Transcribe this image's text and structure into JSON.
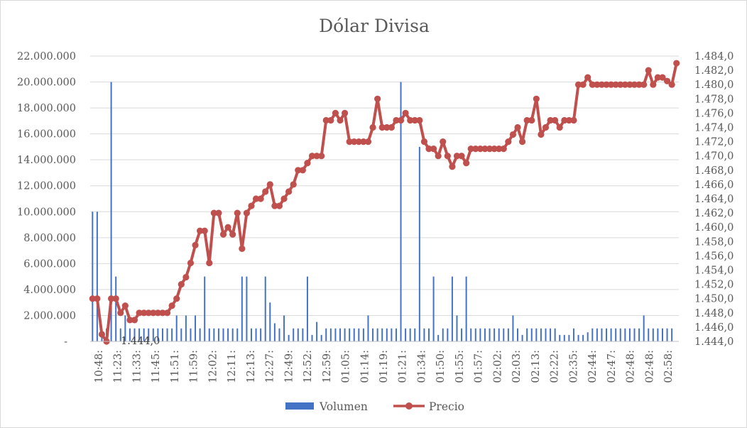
{
  "chart_data": {
    "type": "bar+line",
    "title": "Dólar Divisa",
    "xlabel": "",
    "ylabel_left": "",
    "ylabel_right": "",
    "ylim_left": [
      0,
      22000000
    ],
    "ylim_right": [
      1444.0,
      1484.0
    ],
    "grid": true,
    "legend_position": "bottom",
    "left_ticks": [
      "-",
      "2.000.000",
      "4.000.000",
      "6.000.000",
      "8.000.000",
      "10.000.000",
      "12.000.000",
      "14.000.000",
      "16.000.000",
      "18.000.000",
      "20.000.000",
      "22.000.000"
    ],
    "right_ticks": [
      "1.444,0",
      "1.446,0",
      "1.448,0",
      "1.450,0",
      "1.452,0",
      "1.454,0",
      "1.456,0",
      "1.458,0",
      "1.460,0",
      "1.462,0",
      "1.464,0",
      "1.466,0",
      "1.468,0",
      "1.470,0",
      "1.472,0",
      "1.474,0",
      "1.476,0",
      "1.478,0",
      "1.480,0",
      "1.482,0",
      "1.484,0"
    ],
    "x_tick_labels": [
      "10:48:",
      "11:23:",
      "11:33:",
      "11:45:",
      "11:51:",
      "11:59:",
      "12:02:",
      "12:11:",
      "12:13:",
      "12:27:",
      "12:49:",
      "12:52:",
      "12:59:",
      "01:05:",
      "01:14:",
      "01:19:",
      "01:21:",
      "01:34:",
      "01:50:",
      "01:55:",
      "01:57:",
      "02:02:",
      "02:03:",
      "02:13:",
      "02:22:",
      "02:35:",
      "02:44:",
      "02:47:",
      "02:48:",
      "02:48:",
      "02:58:"
    ],
    "data_labels": [
      {
        "series": "Precio",
        "point_index": 3,
        "text": "1.444,0"
      }
    ],
    "series": [
      {
        "name": "Volumen",
        "type": "bar",
        "axis": "left",
        "color": "#4472c4",
        "values": [
          10000000,
          10000000,
          1000000,
          1000000,
          20000000,
          5000000,
          1000000,
          2000000,
          1000000,
          1000000,
          1000000,
          1000000,
          1000000,
          1000000,
          1000000,
          1000000,
          1000000,
          1000000,
          2000000,
          1000000,
          2000000,
          1000000,
          2000000,
          1000000,
          5000000,
          1000000,
          1000000,
          1000000,
          1000000,
          1000000,
          1000000,
          1000000,
          5000000,
          5000000,
          1000000,
          1000000,
          1000000,
          5000000,
          3000000,
          1400000,
          1000000,
          2000000,
          500000,
          1000000,
          1000000,
          1000000,
          5000000,
          500000,
          1500000,
          500000,
          1000000,
          1000000,
          1000000,
          1000000,
          1000000,
          1000000,
          1000000,
          1000000,
          1000000,
          2000000,
          1000000,
          1000000,
          1000000,
          1000000,
          1000000,
          1000000,
          20000000,
          1000000,
          1000000,
          1000000,
          15000000,
          1000000,
          1000000,
          5000000,
          500000,
          1000000,
          1000000,
          5000000,
          2000000,
          1000000,
          5000000,
          1000000,
          1000000,
          1000000,
          1000000,
          1000000,
          1000000,
          1000000,
          1000000,
          1000000,
          2000000,
          1000000,
          500000,
          1000000,
          1000000,
          1000000,
          1000000,
          1000000,
          1000000,
          1000000,
          500000,
          500000,
          500000,
          1000000,
          500000,
          500000,
          700000,
          1000000,
          1000000,
          1000000,
          1000000,
          1000000,
          1000000,
          1000000,
          1000000,
          1000000,
          1000000,
          1000000,
          2000000,
          1000000,
          1000000,
          1000000,
          1000000,
          1000000,
          1000000
        ]
      },
      {
        "name": "Precio",
        "type": "line",
        "axis": "right",
        "color": "#c0504d",
        "values": [
          1450.0,
          1450.0,
          1445.0,
          1444.0,
          1450.0,
          1450.0,
          1448.0,
          1449.0,
          1447.0,
          1447.0,
          1448.0,
          1448.0,
          1448.0,
          1448.0,
          1448.0,
          1448.0,
          1448.0,
          1449.0,
          1450.0,
          1452.0,
          1453.0,
          1455.0,
          1457.5,
          1459.5,
          1459.5,
          1455.0,
          1462.0,
          1462.0,
          1459.0,
          1460.0,
          1459.0,
          1462.0,
          1457.0,
          1462.0,
          1463.0,
          1464.0,
          1464.0,
          1465.0,
          1466.0,
          1463.0,
          1463.0,
          1464.0,
          1465.0,
          1466.0,
          1468.0,
          1468.0,
          1469.0,
          1470.0,
          1470.0,
          1470.0,
          1475.0,
          1475.0,
          1476.0,
          1475.0,
          1476.0,
          1472.0,
          1472.0,
          1472.0,
          1472.0,
          1472.0,
          1474.0,
          1478.0,
          1474.0,
          1474.0,
          1474.0,
          1475.0,
          1475.0,
          1476.0,
          1475.0,
          1475.0,
          1475.0,
          1472.0,
          1471.0,
          1471.0,
          1470.0,
          1472.0,
          1470.0,
          1468.5,
          1470.0,
          1470.0,
          1469.0,
          1471.0,
          1471.0,
          1471.0,
          1471.0,
          1471.0,
          1471.0,
          1471.0,
          1471.0,
          1472.0,
          1473.0,
          1474.0,
          1472.0,
          1475.0,
          1475.0,
          1478.0,
          1473.0,
          1474.0,
          1475.0,
          1475.0,
          1474.0,
          1475.0,
          1475.0,
          1475.0,
          1480.0,
          1480.0,
          1481.0,
          1480.0,
          1480.0,
          1480.0,
          1480.0,
          1480.0,
          1480.0,
          1480.0,
          1480.0,
          1480.0,
          1480.0,
          1480.0,
          1480.0,
          1482.0,
          1480.0,
          1481.0,
          1481.0,
          1480.5,
          1480.0,
          1483.0
        ]
      }
    ]
  }
}
